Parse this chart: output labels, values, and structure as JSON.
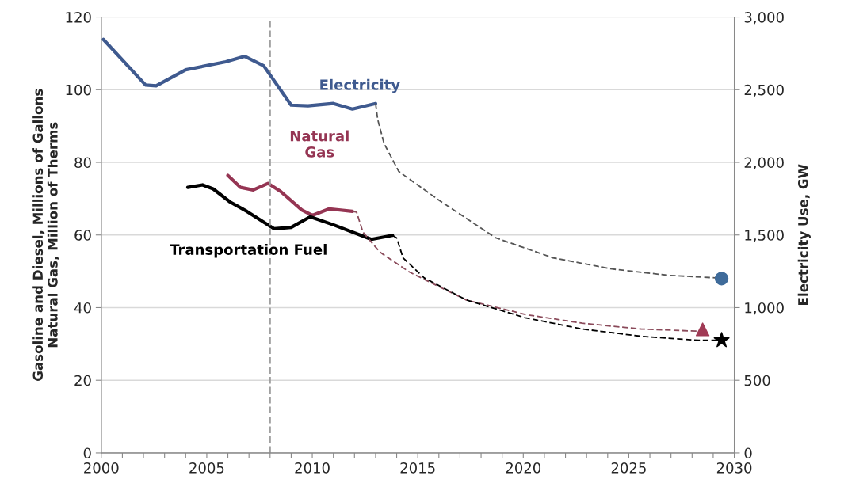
{
  "chart_data": {
    "type": "line",
    "ylabel": "Gasoline and Diesel, Millions of Gallons\nNatural Gas, Million of Therms",
    "y2label": "Electricity Use, GW",
    "xlim": [
      2000,
      2030
    ],
    "xticks": [
      2000,
      {
        "value": 2001,
        "label": null
      },
      {
        "value": 2002,
        "label": null
      },
      {
        "value": 2003,
        "label": null
      },
      {
        "value": 2004,
        "label": null
      },
      2005,
      {
        "value": 2006,
        "label": null
      },
      {
        "value": 2007,
        "label": null
      },
      {
        "value": 2008,
        "label": null
      },
      {
        "value": 2009,
        "label": null
      },
      2010,
      {
        "value": 2011,
        "label": null
      },
      {
        "value": 2012,
        "label": null
      },
      {
        "value": 2013,
        "label": null
      },
      {
        "value": 2014,
        "label": null
      },
      2015,
      {
        "value": 2016,
        "label": null
      },
      {
        "value": 2017,
        "label": null
      },
      {
        "value": 2018,
        "label": null
      },
      {
        "value": 2019,
        "label": null
      },
      2020,
      {
        "value": 2021,
        "label": null
      },
      {
        "value": 2022,
        "label": null
      },
      {
        "value": 2023,
        "label": null
      },
      {
        "value": 2024,
        "label": null
      },
      2025,
      {
        "value": 2026,
        "label": null
      },
      {
        "value": 2027,
        "label": null
      },
      {
        "value": 2028,
        "label": null
      },
      {
        "value": 2029,
        "label": null
      },
      2030
    ],
    "ylim": [
      0,
      120
    ],
    "yticks": [
      0,
      20,
      40,
      60,
      80,
      100,
      120
    ],
    "y2lim": [
      0,
      3000
    ],
    "y2ticks": [
      {
        "value": 0,
        "label": "0"
      },
      {
        "value": 500,
        "label": "500"
      },
      {
        "value": 1000,
        "label": "1,000"
      },
      {
        "value": 1500,
        "label": "1,500"
      },
      {
        "value": 2000,
        "label": "2,000"
      },
      {
        "value": 2500,
        "label": "2,500"
      },
      {
        "value": 3000,
        "label": "3,000"
      }
    ],
    "grid": "y",
    "legend": false,
    "ref_lines": [
      {
        "axis": "x",
        "value": 2008,
        "color": "#a0a0a0",
        "line_style": "dashed"
      }
    ],
    "series": [
      {
        "name": "Electricity",
        "color": "#3f5a8f",
        "axis": "y2",
        "x": [
          2000.1,
          2002.1,
          2002.6,
          2004.0,
          2005.9,
          2006.8,
          2007.7,
          2009.0,
          2009.8,
          2011.0,
          2011.9,
          2013.0
        ],
        "values": [
          2846,
          2532,
          2527,
          2637,
          2692,
          2730,
          2664,
          2394,
          2389,
          2405,
          2367,
          2405
        ]
      },
      {
        "name": "Natural Gas",
        "color": "#953553",
        "x": [
          2006.0,
          2006.6,
          2007.2,
          2007.9,
          2008.5,
          2009.5,
          2010.0,
          2010.8,
          2011.9
        ],
        "values": [
          76.4,
          73.1,
          72.4,
          74.2,
          72.0,
          66.9,
          65.4,
          67.2,
          66.5
        ]
      },
      {
        "name": "Transportation Fuel",
        "color": "#000000",
        "x": [
          2004.1,
          2004.8,
          2005.3,
          2006.1,
          2006.9,
          2008.2,
          2009.0,
          2009.9,
          2011.0,
          2012.8,
          2013.8
        ],
        "values": [
          73.1,
          73.8,
          72.7,
          69.1,
          66.5,
          61.7,
          62.1,
          65.0,
          62.8,
          58.8,
          59.9
        ]
      },
      {
        "color": "#555555",
        "axis": "y2",
        "line_style": "dashed",
        "x": [
          2013.0,
          2013.1,
          2013.4,
          2014.1,
          2016.0,
          2018.7,
          2021.4,
          2024.2,
          2026.9,
          2029.1,
          2029.4
        ],
        "values": [
          2405,
          2295,
          2130,
          1937,
          1740,
          1480,
          1343,
          1266,
          1222,
          1205,
          1200
        ]
      },
      {
        "color": "#8a4a5a",
        "line_style": "dashed",
        "x": [
          2011.9,
          2012.1,
          2012.4,
          2013.2,
          2014.6,
          2017.3,
          2020.1,
          2022.8,
          2025.6,
          2028.3,
          2028.5
        ],
        "values": [
          66.5,
          66.3,
          60.8,
          55.3,
          49.8,
          42.1,
          38.1,
          35.7,
          34.1,
          33.5,
          33.5
        ]
      },
      {
        "color": "#000000",
        "line_style": "dashed",
        "x": [
          2013.8,
          2014.0,
          2014.3,
          2015.3,
          2017.3,
          2020.1,
          2022.8,
          2025.6,
          2028.3,
          2029.4
        ],
        "values": [
          59.9,
          59.2,
          53.7,
          48.2,
          42.1,
          37.2,
          34.1,
          32.1,
          31.0,
          31.0
        ]
      },
      {
        "type": "scatter",
        "marker": "circle",
        "color": "#3f6b9a",
        "axis": "y2",
        "x": [
          2029.4
        ],
        "values": [
          1200
        ]
      },
      {
        "type": "scatter",
        "marker": "triangle",
        "color": "#a03a55",
        "x": [
          2028.5
        ],
        "values": [
          34
        ]
      },
      {
        "type": "scatter",
        "marker": "star",
        "color": "#000000",
        "x": [
          2029.4
        ],
        "values": [
          31
        ]
      }
    ]
  }
}
